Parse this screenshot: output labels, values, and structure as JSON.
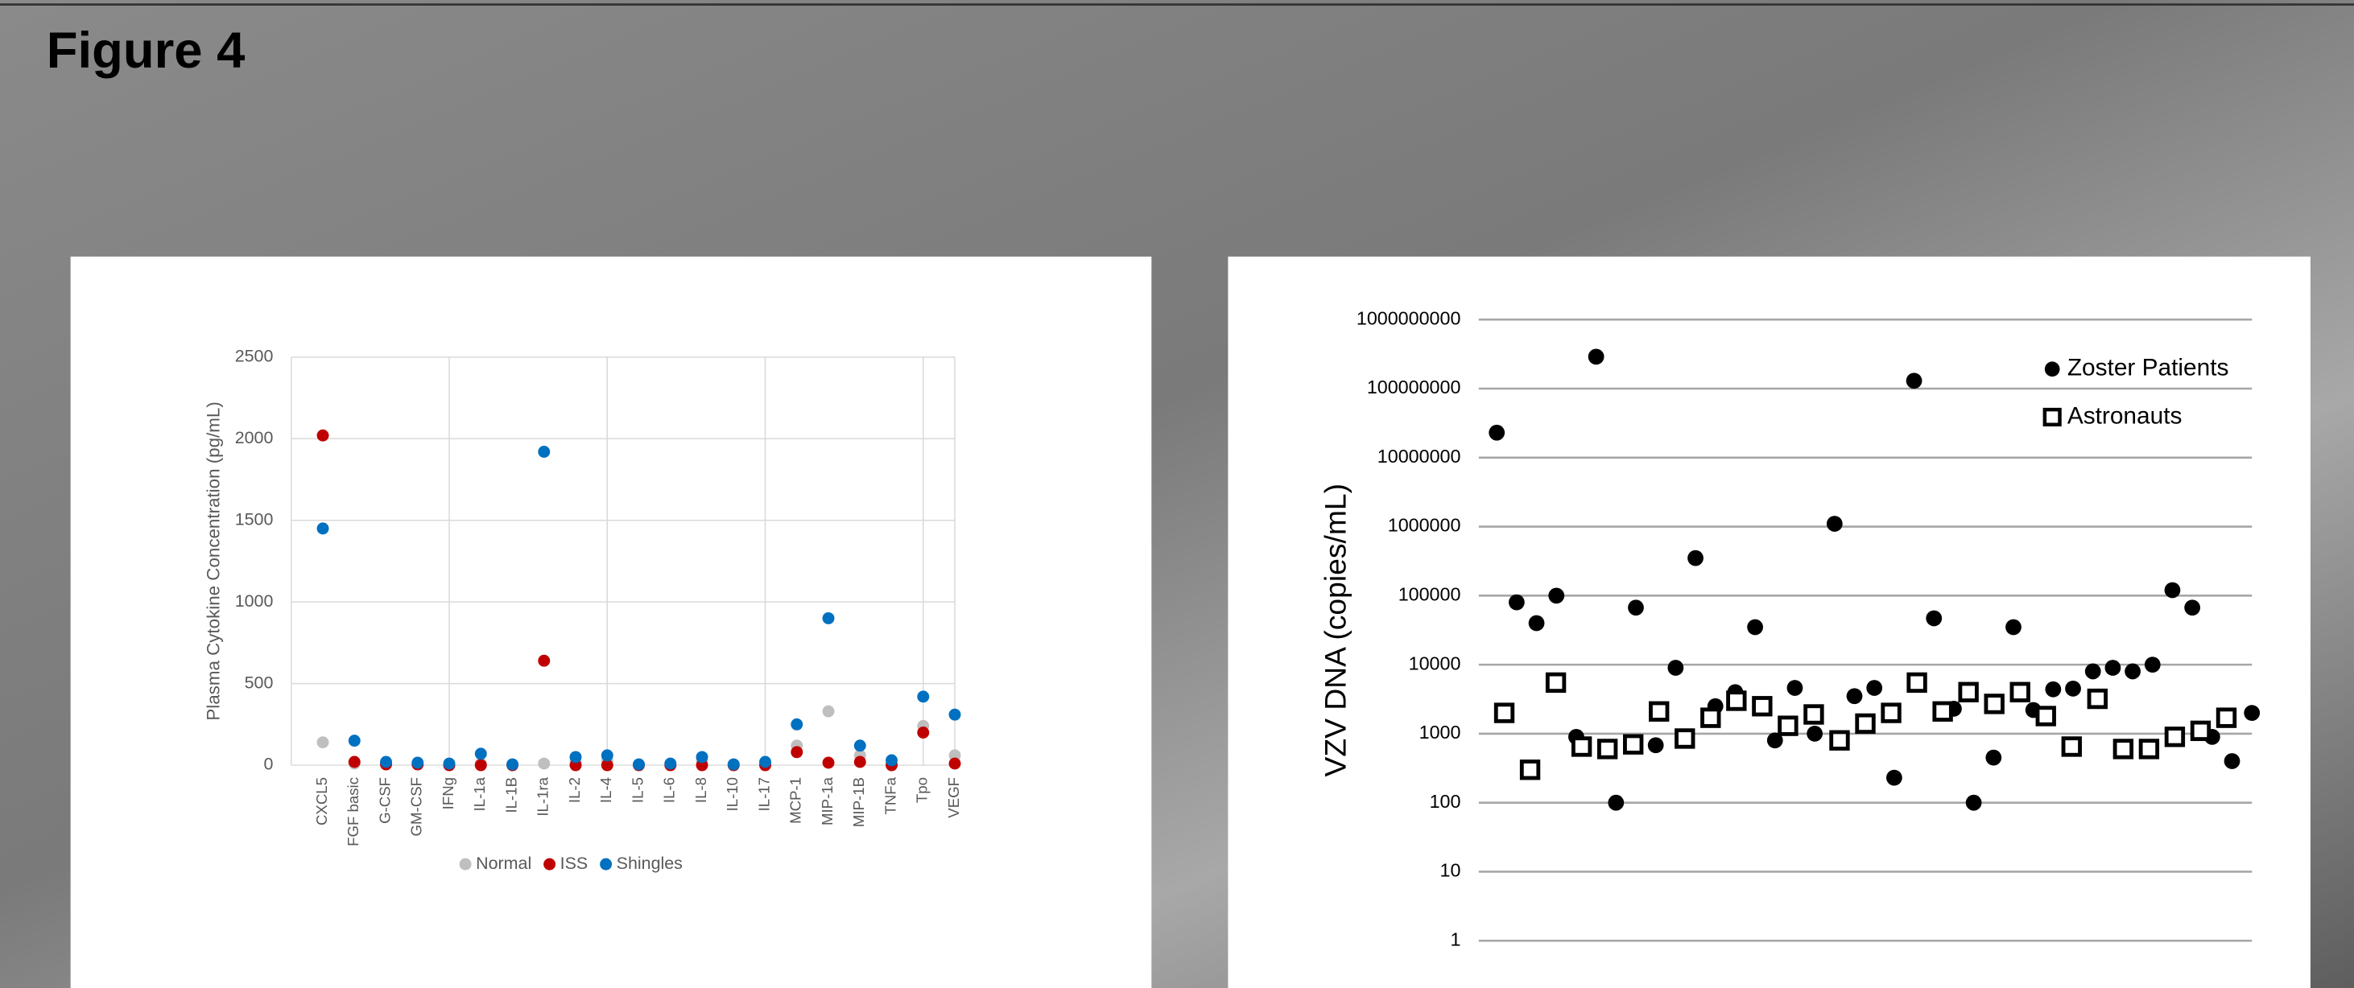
{
  "header": {
    "title": "Figure 4"
  },
  "chart_data": [
    {
      "type": "dot",
      "ylabel": "Plasma Cytokine Concentration (pg/mL)",
      "categories": [
        "CXCL5",
        "FGF basic",
        "G-CSF",
        "GM-CSF",
        "IFNg",
        "IL-1a",
        "IL-1B",
        "IL-1ra",
        "IL-2",
        "IL-4",
        "IL-5",
        "IL-6",
        "IL-8",
        "IL-10",
        "IL-17",
        "MCP-1",
        "MIP-1a",
        "MIP-1B",
        "TNFa",
        "Tpo",
        "VEGF"
      ],
      "series": [
        {
          "name": "Normal",
          "color": "#bfbfbf",
          "values": [
            140,
            10,
            10,
            10,
            5,
            10,
            5,
            10,
            20,
            30,
            5,
            5,
            30,
            5,
            10,
            120,
            330,
            60,
            10,
            240,
            60
          ]
        },
        {
          "name": "ISS",
          "color": "#c00000",
          "values": [
            2020,
            20,
            5,
            5,
            0,
            0,
            0,
            640,
            0,
            0,
            0,
            0,
            0,
            0,
            0,
            80,
            15,
            20,
            0,
            200,
            10
          ]
        },
        {
          "name": "Shingles",
          "color": "#0070c0",
          "values": [
            1450,
            150,
            20,
            15,
            10,
            70,
            5,
            1920,
            50,
            60,
            5,
            10,
            50,
            5,
            20,
            250,
            900,
            120,
            30,
            420,
            310
          ]
        }
      ],
      "ylim": [
        0,
        2500
      ],
      "yticks": [
        0,
        500,
        1000,
        1500,
        2000,
        2500
      ],
      "grid": true,
      "legend": "bottom"
    },
    {
      "type": "scatter",
      "ylabel": "VZV DNA (copies/mL)",
      "y_scale": "log",
      "series": [
        {
          "name": "Zoster Patients",
          "marker": "circle",
          "color": "#000000",
          "values": [
            23000000,
            80000,
            40000,
            100000,
            900,
            290000000,
            100,
            67000,
            680,
            9000,
            350000,
            2500,
            4000,
            35000,
            800,
            4600,
            1000,
            1100000,
            3500,
            4600,
            230,
            130000000,
            47000,
            2300,
            100,
            450,
            35000,
            2200,
            4400,
            4500,
            8000,
            9000,
            8000,
            10000,
            120000,
            67000,
            900,
            400,
            2000
          ]
        },
        {
          "name": "Astronauts",
          "marker": "square",
          "color": "#000000",
          "values": [
            2000,
            300,
            5500,
            650,
            600,
            700,
            2100,
            850,
            1700,
            3000,
            2500,
            1300,
            1900,
            800,
            1400,
            2000,
            5500,
            2100,
            4000,
            2700,
            4000,
            1800,
            650,
            3200,
            600,
            600,
            900,
            1100,
            1700
          ]
        }
      ],
      "ylim": [
        1,
        1000000000
      ],
      "yticks": [
        1,
        10,
        100,
        1000,
        10000,
        100000,
        1000000,
        10000000,
        100000000,
        1000000000
      ],
      "grid": true,
      "legend": "top-right"
    }
  ]
}
